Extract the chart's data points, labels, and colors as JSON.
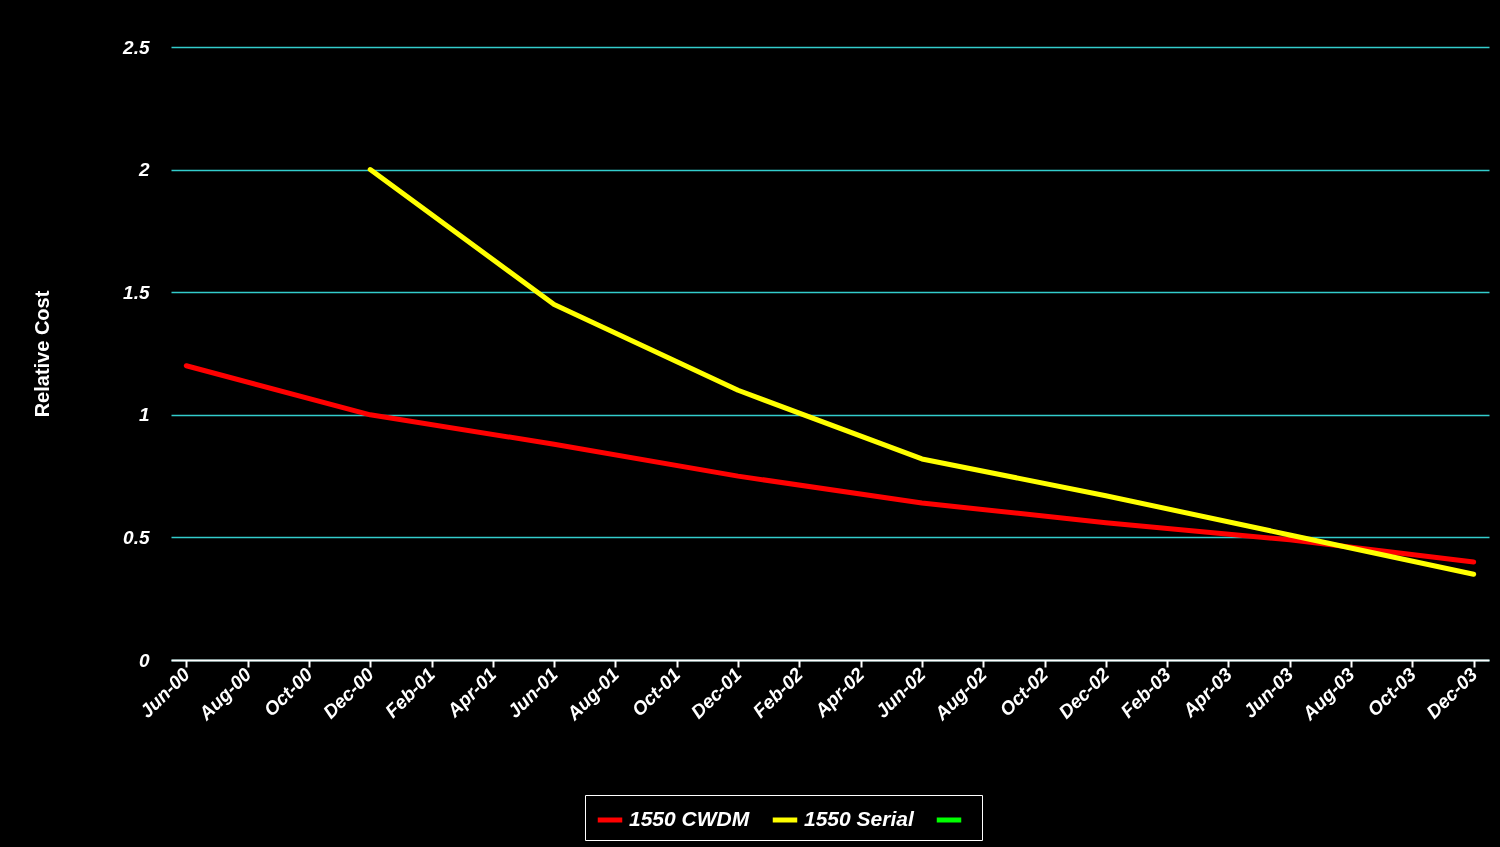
{
  "chart_data": {
    "type": "line",
    "ylabel": "Relative Cost",
    "categories": [
      "Jun-00",
      null,
      "Aug-00",
      null,
      "Oct-00",
      null,
      "Dec-00",
      null,
      "Feb-01",
      null,
      "Apr-01",
      null,
      "Jun-01",
      null,
      "Aug-01",
      null,
      "Oct-01",
      null,
      "Dec-01",
      null,
      "Feb-02",
      null,
      "Apr-02",
      null,
      "Jun-02",
      null,
      "Aug-02",
      null,
      "Oct-02",
      null,
      "Dec-02",
      null,
      "Feb-03",
      null,
      "Apr-03",
      null,
      "Jun-03",
      null,
      "Aug-03",
      null,
      "Oct-03",
      null,
      "Dec-03"
    ],
    "series": [
      {
        "name": "1550 CWDM",
        "color": "#ff0000",
        "values": [
          1.2,
          null,
          null,
          null,
          null,
          null,
          1.0,
          null,
          null,
          null,
          null,
          null,
          0.88,
          null,
          null,
          null,
          null,
          null,
          0.75,
          null,
          null,
          null,
          null,
          null,
          0.64,
          null,
          null,
          null,
          null,
          null,
          0.56,
          null,
          null,
          null,
          null,
          null,
          0.49,
          null,
          null,
          null,
          null,
          null,
          0.4
        ]
      },
      {
        "name": "1550 Serial",
        "color": "#ffff00",
        "values": [
          null,
          null,
          null,
          null,
          null,
          null,
          2.0,
          null,
          null,
          null,
          null,
          null,
          1.45,
          null,
          null,
          null,
          null,
          null,
          1.1,
          null,
          null,
          null,
          null,
          null,
          0.82,
          null,
          null,
          null,
          null,
          null,
          0.67,
          null,
          null,
          null,
          null,
          null,
          0.51,
          null,
          null,
          null,
          null,
          null,
          0.35
        ]
      },
      {
        "color": "#00ff00",
        "values": [
          null,
          null,
          null,
          null,
          null,
          null,
          null,
          null,
          null,
          null,
          null,
          null,
          null,
          null,
          null,
          null,
          null,
          null,
          null,
          null,
          null,
          null,
          null,
          null,
          null,
          null,
          null,
          null,
          null,
          null,
          null,
          null,
          null,
          null,
          null,
          null,
          null,
          null,
          null,
          null,
          null,
          null,
          null
        ]
      }
    ],
    "ylim": [
      0,
      2.5
    ],
    "yticks": [
      0,
      0.5,
      1,
      1.5,
      2,
      2.5
    ],
    "grid": "y",
    "legend": "bottom",
    "marker": "none",
    "line_style": "solid"
  }
}
